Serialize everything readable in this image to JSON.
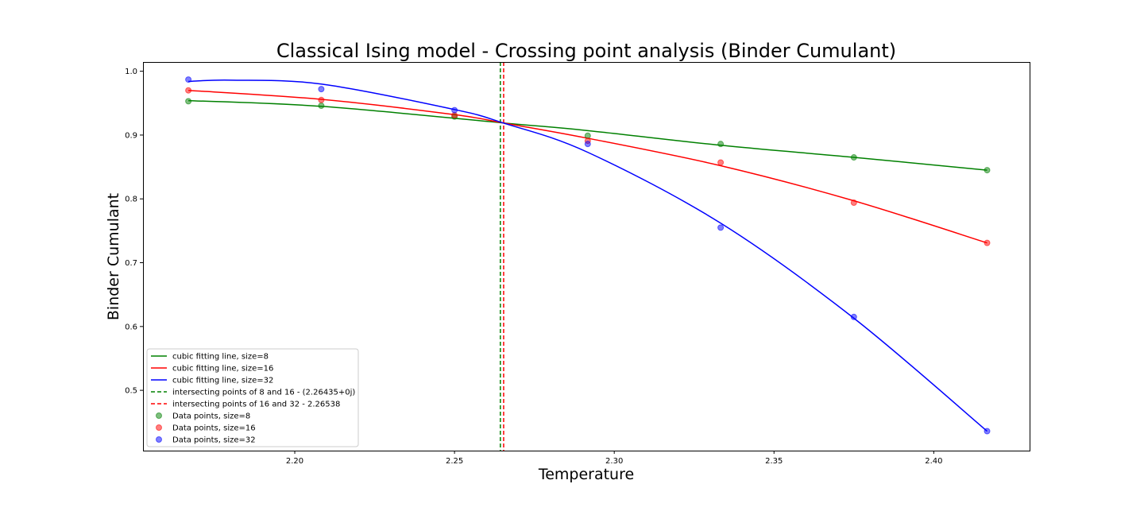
{
  "chart_data": {
    "type": "scatter",
    "title": "Classical Ising model - Crossing point analysis (Binder Cumulant)",
    "xlabel": "Temperature",
    "ylabel": "Binder Cumulant",
    "xlim": [
      2.1525,
      2.43
    ],
    "ylim": [
      0.4055,
      1.0145
    ],
    "xticks": [
      2.2,
      2.25,
      2.3,
      2.35,
      2.4
    ],
    "xtick_labels": [
      "2.20",
      "2.25",
      "2.30",
      "2.35",
      "2.40"
    ],
    "yticks": [
      0.5,
      0.6,
      0.7,
      0.8,
      0.9,
      1.0
    ],
    "ytick_labels": [
      "0.5",
      "0.6",
      "0.7",
      "0.8",
      "0.9",
      "1.0"
    ],
    "grid": false,
    "legend_position": "lower-left",
    "x": [
      2.1667,
      2.2083,
      2.25,
      2.2917,
      2.3333,
      2.375,
      2.4167
    ],
    "series": [
      {
        "name": "Data points, size=8",
        "kind": "points",
        "color": "#008000",
        "values": [
          0.953,
          0.946,
          0.929,
          0.899,
          0.886,
          0.865,
          0.845
        ]
      },
      {
        "name": "Data points, size=16",
        "kind": "points",
        "color": "#ff0000",
        "values": [
          0.97,
          0.955,
          0.931,
          0.891,
          0.857,
          0.794,
          0.731
        ]
      },
      {
        "name": "Data points, size=32",
        "kind": "points",
        "color": "#0000ff",
        "values": [
          0.987,
          0.972,
          0.939,
          0.886,
          0.755,
          0.615,
          0.436
        ]
      }
    ],
    "fits": [
      {
        "name": "cubic fitting line, size=8",
        "color": "#008000",
        "x": [
          2.1667,
          2.2083,
          2.2652,
          2.2917,
          2.3333,
          2.375,
          2.4167
        ],
        "y": [
          0.954,
          0.945,
          0.919,
          0.907,
          0.884,
          0.865,
          0.845
        ]
      },
      {
        "name": "cubic fitting line, size=16",
        "color": "#ff0000",
        "x": [
          2.1667,
          2.2083,
          2.25,
          2.2652,
          2.2917,
          2.3333,
          2.375,
          2.4167
        ],
        "y": [
          0.97,
          0.956,
          0.932,
          0.919,
          0.895,
          0.852,
          0.797,
          0.731
        ]
      },
      {
        "name": "cubic fitting line, size=32",
        "color": "#0000ff",
        "x": [
          2.1667,
          2.18,
          2.2083,
          2.25,
          2.2652,
          2.2917,
          2.3333,
          2.375,
          2.4167
        ],
        "y": [
          0.984,
          0.986,
          0.98,
          0.94,
          0.919,
          0.873,
          0.762,
          0.613,
          0.436
        ]
      }
    ],
    "vlines": [
      {
        "name": "intersecting points of 8 and 16 - (2.26435+0j)",
        "x": 2.26435,
        "color": "#008000",
        "style": "dashed"
      },
      {
        "name": "intersecting points of 16 and 32 - 2.26538",
        "x": 2.26538,
        "color": "#ff0000",
        "style": "dashed"
      }
    ],
    "legend": [
      "cubic fitting line, size=8",
      "cubic fitting line, size=16",
      "cubic fitting line, size=32",
      "intersecting points of 8 and 16 - (2.26435+0j)",
      "intersecting points of 16 and 32 - 2.26538",
      "Data points, size=8",
      "Data points, size=16",
      "Data points, size=32"
    ]
  }
}
